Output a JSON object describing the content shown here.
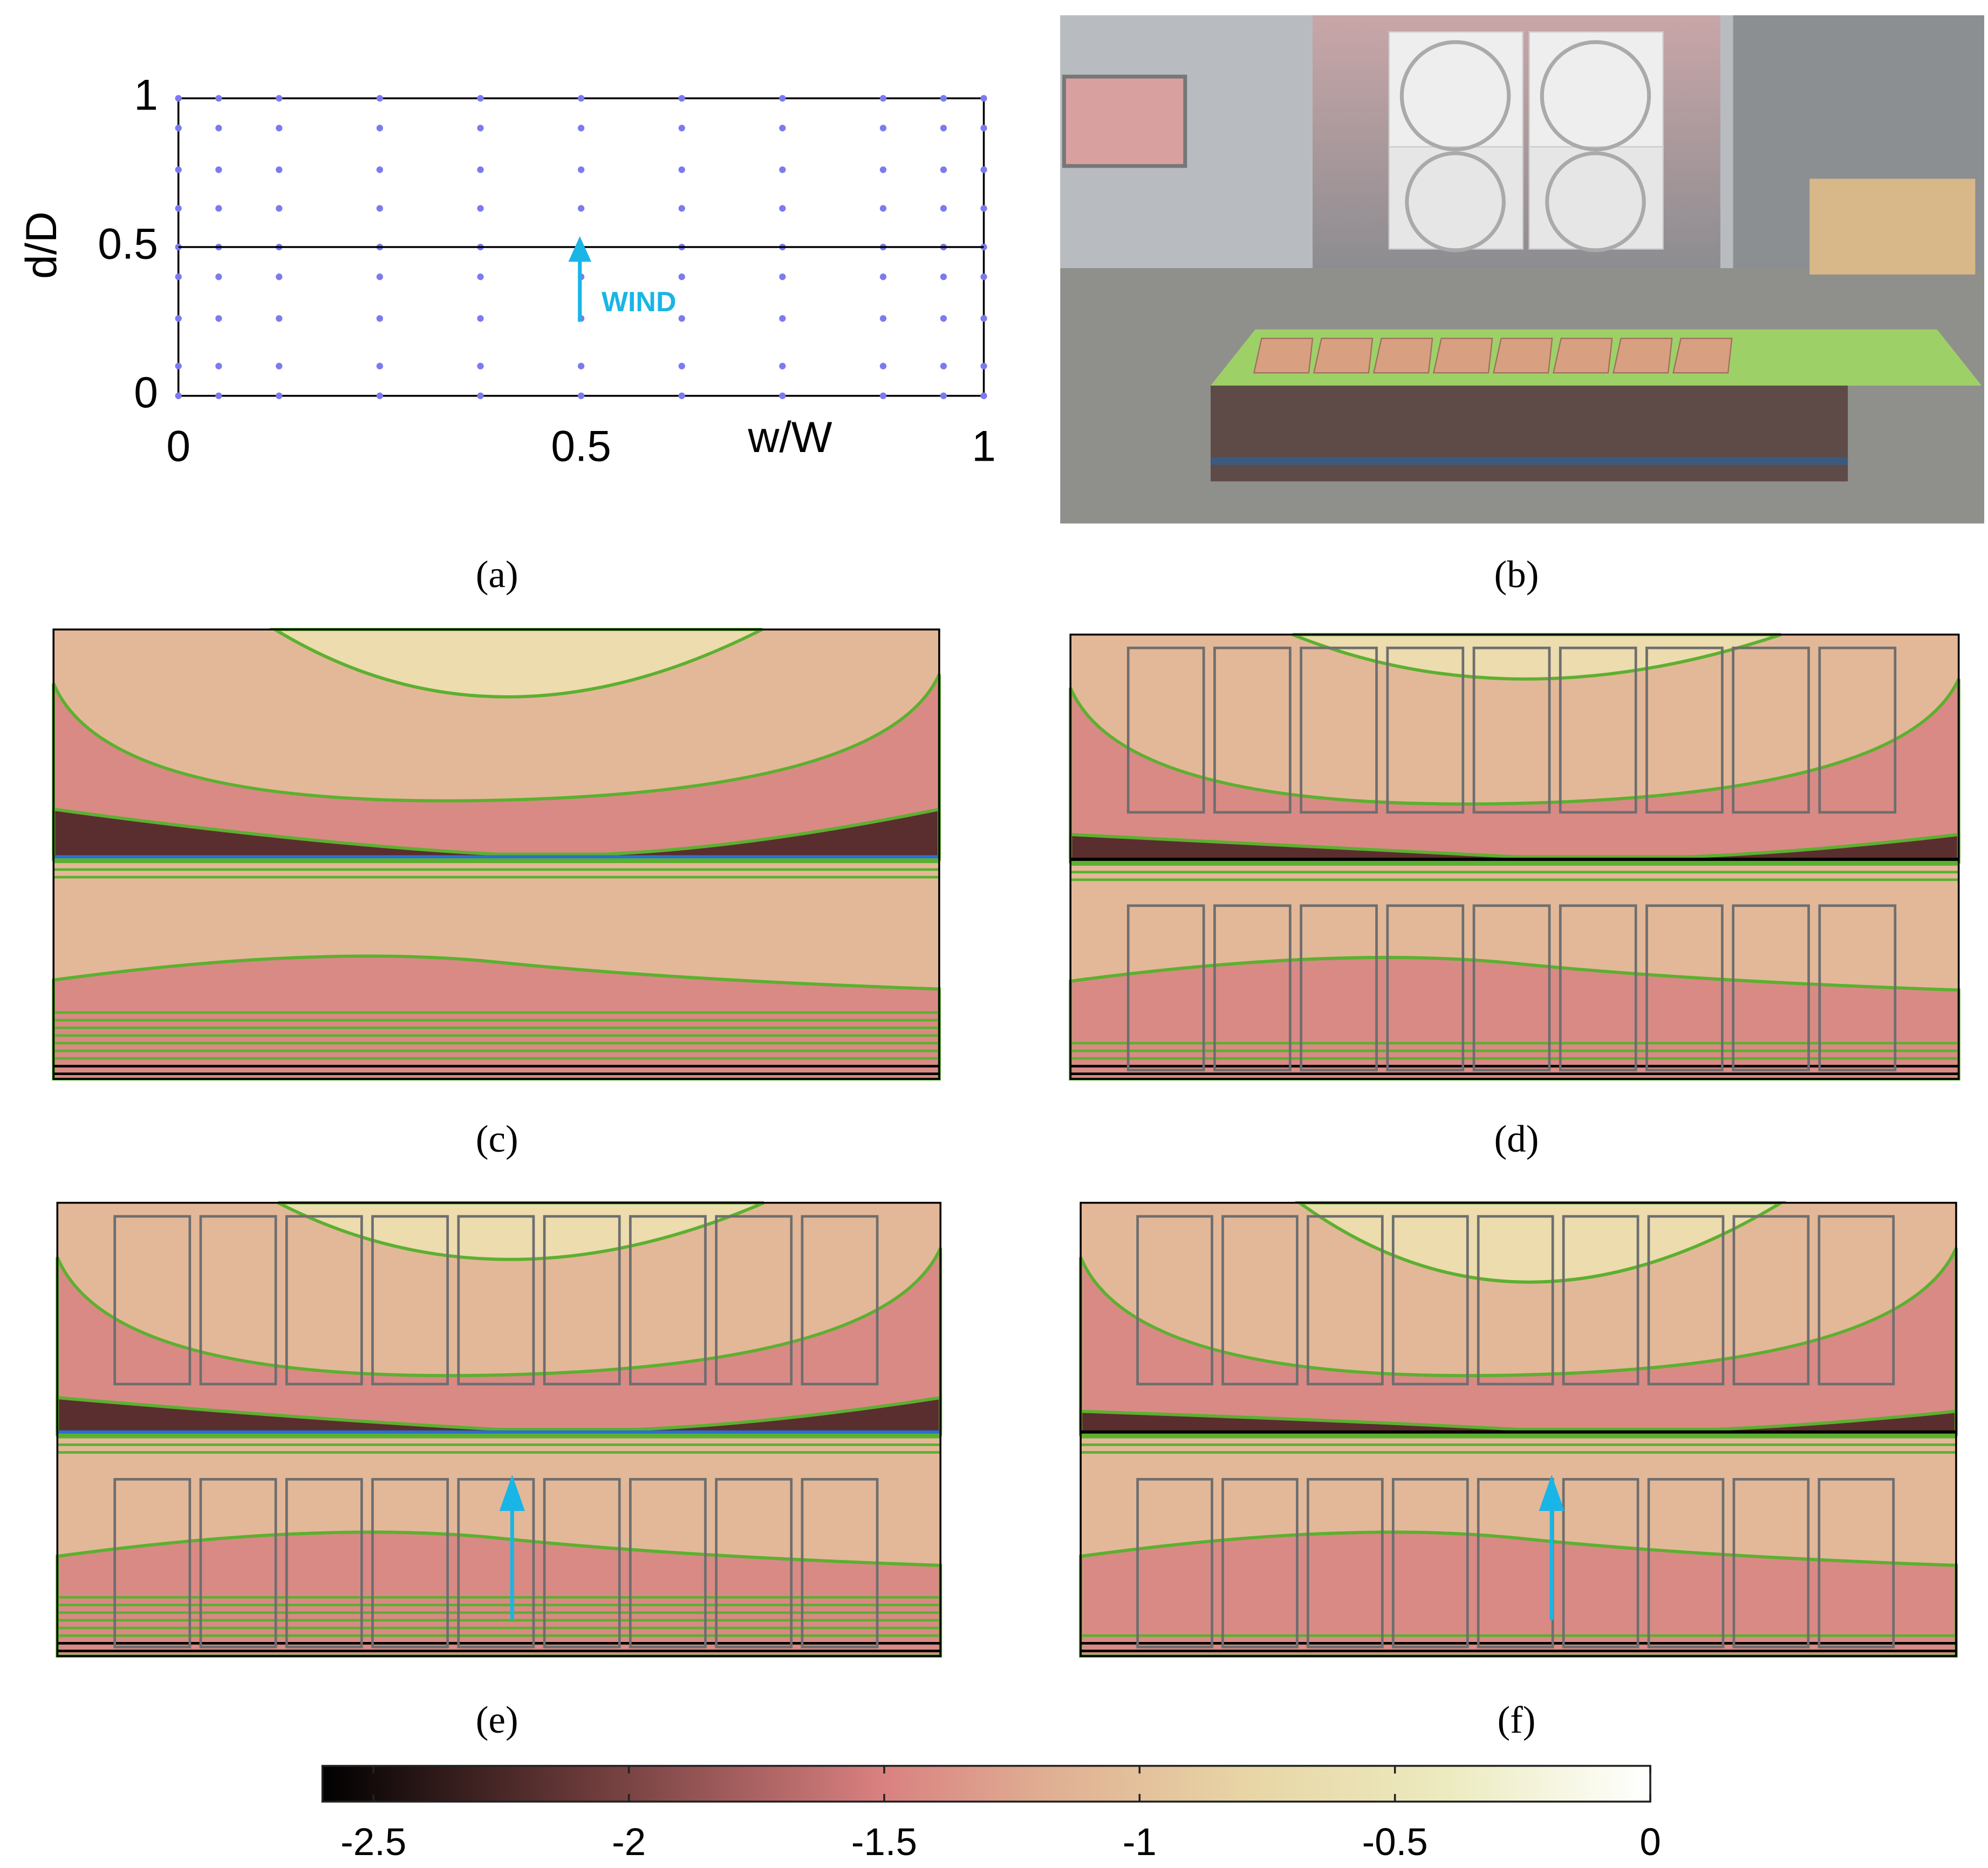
{
  "chart_data": [
    {
      "type": "scatter",
      "xlabel": "w/W",
      "ylabel": "d/D",
      "annotation": "WIND",
      "color": "#7b7bef",
      "xlim": [
        0,
        1
      ],
      "ylim": [
        0,
        1
      ],
      "xticks": [
        0,
        0.5,
        1
      ],
      "yticks": [
        0,
        0.5,
        1
      ],
      "x": [
        0,
        0.05,
        0.125,
        0.25,
        0.375,
        0.5,
        0.625,
        0.75,
        0.875,
        0.95,
        1
      ],
      "series": [
        {
          "values": [
            1,
            1,
            1,
            1,
            1,
            1,
            1,
            1,
            1,
            1,
            1
          ]
        },
        {
          "values": [
            0.9,
            0.9,
            0.9,
            0.9,
            0.9,
            0.9,
            0.9,
            0.9,
            0.9,
            0.9,
            0.9
          ]
        },
        {
          "values": [
            0.76,
            0.76,
            0.76,
            0.76,
            0.76,
            0.76,
            0.76,
            0.76,
            0.76,
            0.76,
            0.76
          ]
        },
        {
          "values": [
            0.63,
            0.63,
            0.63,
            0.63,
            0.63,
            0.63,
            0.63,
            0.63,
            0.63,
            0.63,
            0.63
          ]
        },
        {
          "values": [
            0.5,
            0.5,
            0.5,
            0.5,
            0.5,
            0.5,
            0.5,
            0.5,
            0.5,
            0.5,
            0.5
          ]
        },
        {
          "values": [
            0.4,
            0.4,
            0.4,
            0.4,
            0.4,
            0.4,
            0.4,
            0.4,
            0.4,
            0.4,
            0.4
          ]
        },
        {
          "values": [
            0.26,
            0.26,
            0.26,
            0.26,
            0.26,
            0.26,
            0.26,
            0.26,
            0.26,
            0.26,
            0.26
          ]
        },
        {
          "values": [
            0.1,
            0.1,
            0.1,
            0.1,
            0.1,
            0.1,
            0.1,
            0.1,
            0.1,
            0.1,
            0.1
          ]
        },
        {
          "values": [
            0,
            0,
            0,
            0,
            0,
            0,
            0,
            0,
            0,
            0,
            0
          ]
        }
      ]
    },
    {
      "type": "colorbar",
      "xlim": [
        -2.6,
        0
      ],
      "xticks": [
        -2.5,
        -2,
        -1.5,
        -1,
        -0.5,
        0
      ]
    }
  ],
  "captions": [
    "(a)",
    "(b)",
    "(c)",
    "(d)",
    "(e)",
    "(f)"
  ]
}
